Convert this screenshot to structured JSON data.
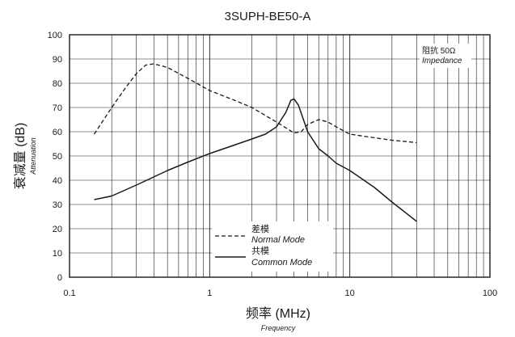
{
  "chart_data": {
    "type": "line",
    "title": "3SUPH-BE50-A",
    "xlabel": "频率 (MHz)",
    "xlabel_sub": "Frequency",
    "ylabel": "衰减量 (dB)",
    "ylabel_sub": "Attenuation",
    "x_scale": "log",
    "xlim": [
      0.1,
      100
    ],
    "ylim": [
      0,
      100
    ],
    "x_ticks": [
      "0.1",
      "1",
      "10",
      "100"
    ],
    "y_ticks": [
      "0",
      "10",
      "20",
      "30",
      "40",
      "50",
      "60",
      "70",
      "80",
      "90",
      "100"
    ],
    "grid": true,
    "annotation": {
      "line1": "阻抗 50Ω",
      "line2": "Impedance"
    },
    "legend": {
      "placement": "bottom-center",
      "entries": [
        {
          "label": "差模",
          "sublabel": "Normal Mode",
          "style": "dashed"
        },
        {
          "label": "共模",
          "sublabel": "Common Mode",
          "style": "solid"
        }
      ]
    },
    "series": [
      {
        "key": "normal",
        "style": "dashed",
        "color": "#1a1a1a",
        "points": [
          [
            0.15,
            59
          ],
          [
            0.2,
            70
          ],
          [
            0.25,
            78
          ],
          [
            0.3,
            84
          ],
          [
            0.35,
            87.5
          ],
          [
            0.4,
            88
          ],
          [
            0.5,
            86.5
          ],
          [
            0.7,
            82
          ],
          [
            1,
            77
          ],
          [
            1.5,
            73
          ],
          [
            2,
            70
          ],
          [
            3,
            64
          ],
          [
            4,
            59.5
          ],
          [
            4.5,
            60
          ],
          [
            5,
            63
          ],
          [
            6,
            65
          ],
          [
            7,
            64
          ],
          [
            8,
            62
          ],
          [
            10,
            59
          ],
          [
            15,
            57.5
          ],
          [
            20,
            56.5
          ],
          [
            30,
            55.5
          ]
        ]
      },
      {
        "key": "common",
        "style": "solid",
        "color": "#1a1a1a",
        "points": [
          [
            0.15,
            32
          ],
          [
            0.2,
            33.5
          ],
          [
            0.3,
            38
          ],
          [
            0.5,
            44
          ],
          [
            0.7,
            47.5
          ],
          [
            1,
            51
          ],
          [
            1.5,
            54.5
          ],
          [
            2,
            57
          ],
          [
            2.5,
            59
          ],
          [
            3,
            62
          ],
          [
            3.5,
            68
          ],
          [
            3.8,
            73
          ],
          [
            4,
            73.5
          ],
          [
            4.3,
            71
          ],
          [
            5,
            60
          ],
          [
            6,
            53
          ],
          [
            7,
            50
          ],
          [
            8,
            47
          ],
          [
            10,
            44
          ],
          [
            15,
            37
          ],
          [
            20,
            31
          ],
          [
            30,
            23
          ]
        ]
      }
    ]
  }
}
